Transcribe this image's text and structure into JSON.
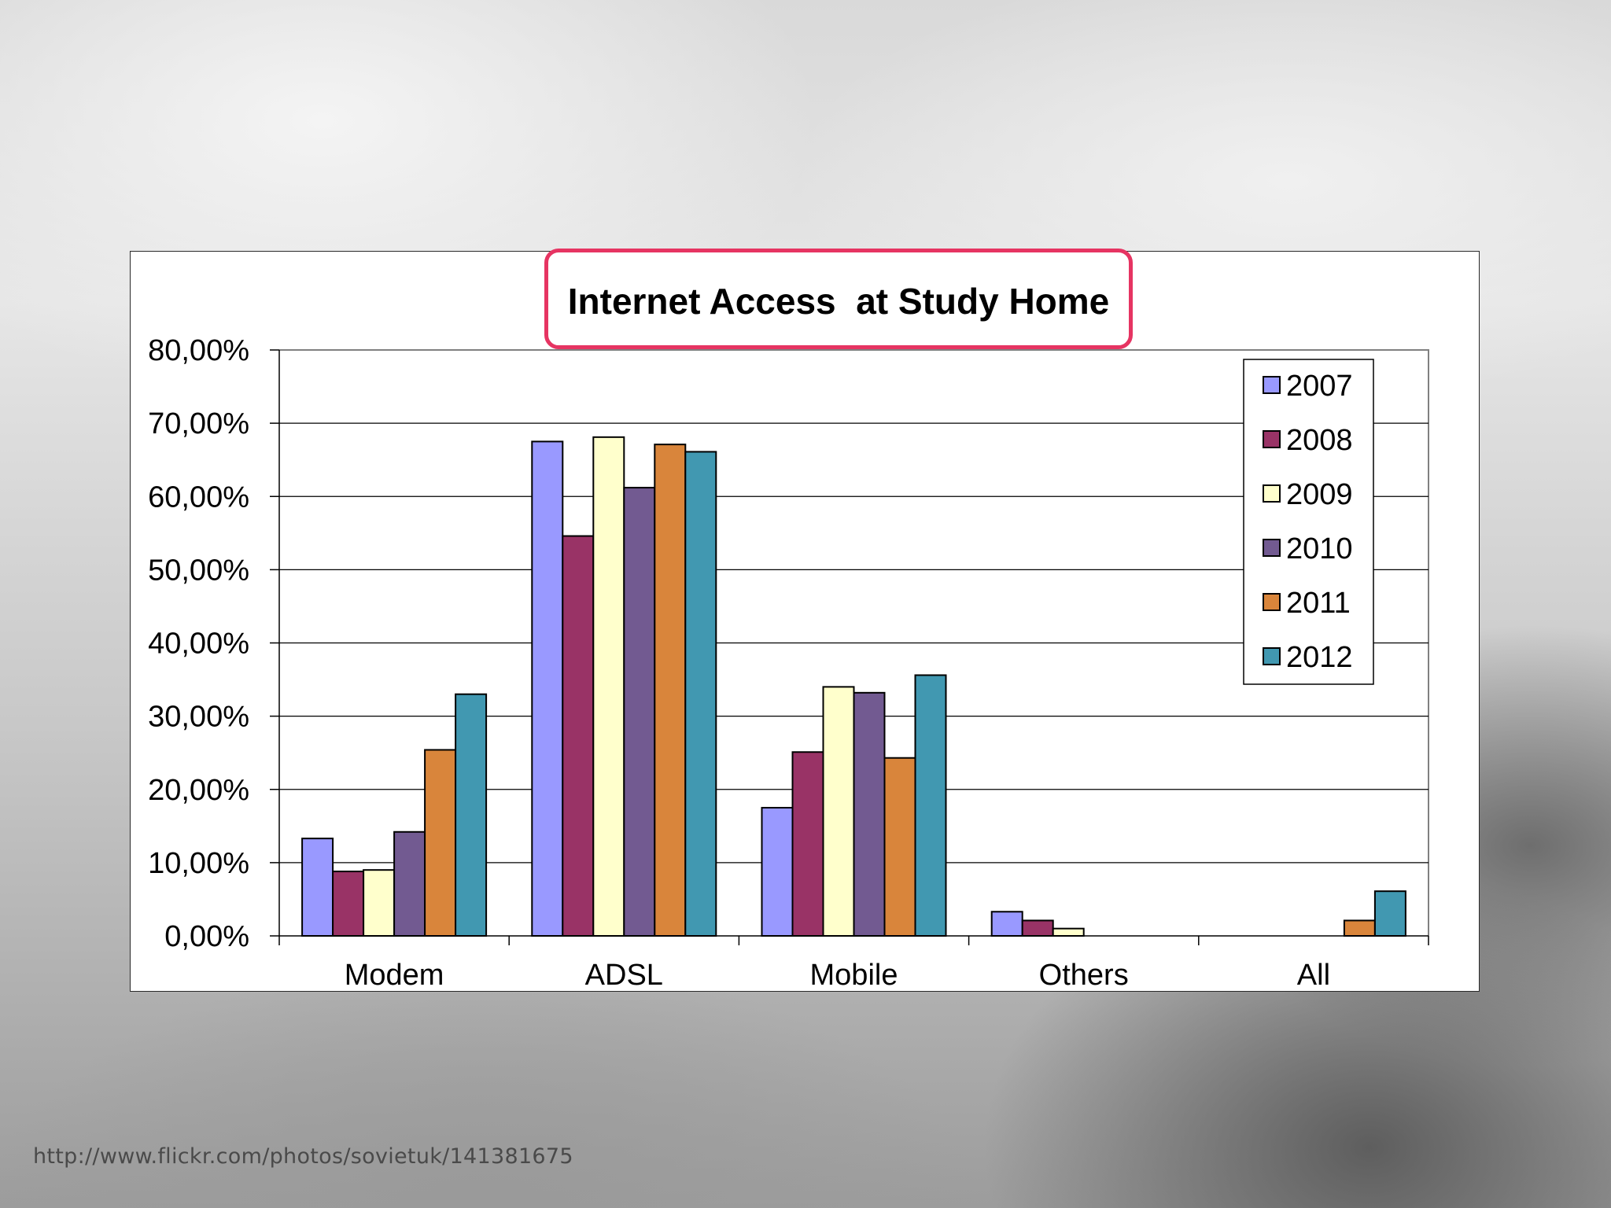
{
  "source_url": "http://www.flickr.com/photos/sovietuk/141381675",
  "chart_data": {
    "type": "bar",
    "title": "Internet Access  at Study Home",
    "xlabel": "",
    "ylabel": "",
    "categories": [
      "Modem",
      "ADSL",
      "Mobile",
      "Others",
      "All"
    ],
    "ylim": [
      0,
      80
    ],
    "yticks": [
      "0,00%",
      "10,00%",
      "20,00%",
      "30,00%",
      "40,00%",
      "50,00%",
      "60,00%",
      "70,00%",
      "80,00%"
    ],
    "grid": true,
    "legend_position": "top-right",
    "series": [
      {
        "name": "2007",
        "color": "#9999ff",
        "values": [
          13.3,
          67.5,
          17.5,
          3.3,
          0
        ]
      },
      {
        "name": "2008",
        "color": "#993366",
        "values": [
          8.8,
          54.6,
          25.1,
          2.1,
          0
        ]
      },
      {
        "name": "2009",
        "color": "#ffffcc",
        "values": [
          9.0,
          68.1,
          34.0,
          1.0,
          0
        ]
      },
      {
        "name": "2010",
        "color": "#725a91",
        "values": [
          14.2,
          61.2,
          33.2,
          0,
          0
        ]
      },
      {
        "name": "2011",
        "color": "#d9853b",
        "values": [
          25.4,
          67.1,
          24.3,
          0,
          2.1
        ]
      },
      {
        "name": "2012",
        "color": "#4198b1",
        "values": [
          33.0,
          66.1,
          35.6,
          0,
          6.1
        ]
      }
    ]
  }
}
